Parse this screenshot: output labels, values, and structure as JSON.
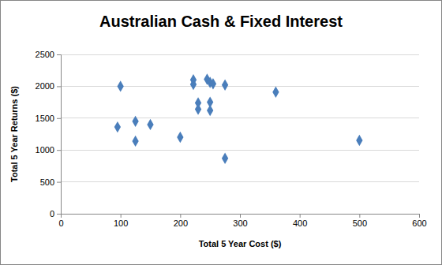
{
  "chart_data": {
    "type": "scatter",
    "title": "Australian Cash & Fixed Interest",
    "x_label": "Total 5 Year Cost ($)",
    "y_label": "Total 5 Year Returns ($)",
    "x": [
      95,
      100,
      125,
      125,
      150,
      200,
      222,
      222,
      230,
      230,
      245,
      250,
      255,
      250,
      250,
      275,
      275,
      360,
      500
    ],
    "values": [
      1360,
      2000,
      1450,
      1140,
      1400,
      1200,
      2100,
      2030,
      1740,
      1640,
      2110,
      2060,
      2040,
      1750,
      1620,
      2020,
      870,
      1910,
      1150
    ],
    "color": "#4a7ebb",
    "marker": "diamond",
    "xlim": [
      0,
      600
    ],
    "ylim": [
      0,
      2500
    ],
    "xticks": [
      0,
      100,
      200,
      300,
      400,
      500,
      600
    ],
    "yticks": [
      0,
      500,
      1000,
      1500,
      2000,
      2500
    ],
    "grid": true
  }
}
